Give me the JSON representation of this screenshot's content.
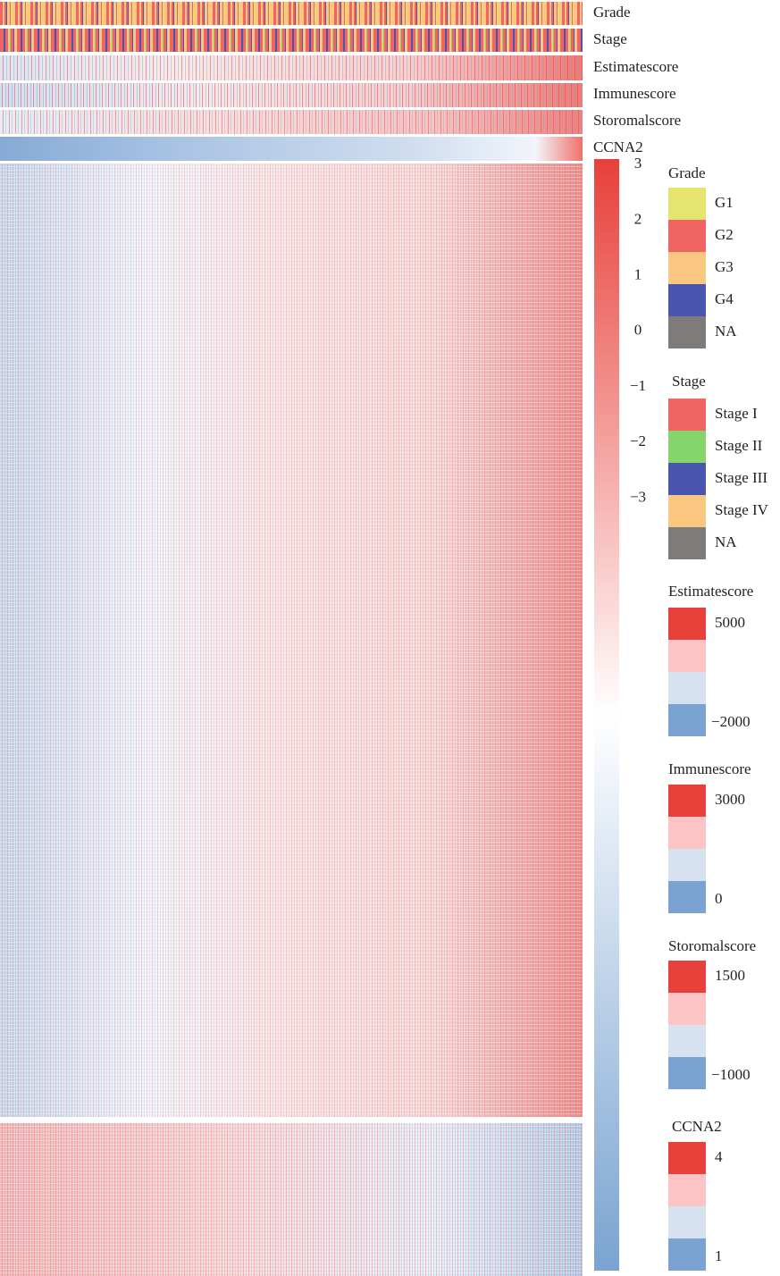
{
  "chart_data": {
    "type": "heatmap",
    "tracks": [
      "Grade",
      "Stage",
      "Estimatescore",
      "Immunescore",
      "Storomalscore",
      "CCNA2"
    ],
    "colorbar": {
      "colors": [
        "#e8403a",
        "#ffffff",
        "#7aa3d1"
      ],
      "ylim": [
        -16.9,
        3.1
      ],
      "yticks": [
        3,
        2,
        1,
        0,
        {
          "value": -1,
          "label": "−1"
        },
        {
          "value": -2,
          "label": "−2"
        },
        {
          "value": -3,
          "label": "−3"
        }
      ]
    },
    "legends": [
      {
        "title": "Grade",
        "labels": [
          "G1",
          "G2",
          "G3",
          "G4",
          "NA"
        ],
        "colors": [
          "#e4e46e",
          "#f06464",
          "#f9c77f",
          "#4a55ad",
          "#7f7b7b"
        ]
      },
      {
        "title": "Stage",
        "labels": [
          "Stage I",
          "Stage II",
          "Stage III",
          "Stage IV",
          "NA"
        ],
        "colors": [
          "#f06464",
          "#86d56a",
          "#4a55ad",
          "#f9c77f",
          "#7f7b7b"
        ]
      },
      {
        "title": "Estimatescore",
        "colors": [
          "#e8403a",
          "#fcc4c4",
          "#d6e2f0",
          "#7aa3d1"
        ],
        "ticks": [
          5000,
          {
            "value": -2000,
            "label": "−2000"
          }
        ]
      },
      {
        "title": "Immunescore",
        "colors": [
          "#e8403a",
          "#fcc4c4",
          "#d6e2f0",
          "#7aa3d1"
        ],
        "ticks": [
          3000,
          0
        ]
      },
      {
        "title": "Storomalscore",
        "colors": [
          "#e8403a",
          "#fcc4c4",
          "#d6e2f0",
          "#7aa3d1"
        ],
        "ticks": [
          1500,
          {
            "value": -1000,
            "label": "−1000"
          }
        ]
      },
      {
        "title": "CCNA2",
        "colors": [
          "#e8403a",
          "#fcc4c4",
          "#d6e2f0",
          "#7aa3d1"
        ],
        "ticks": [
          4,
          1
        ]
      }
    ]
  }
}
